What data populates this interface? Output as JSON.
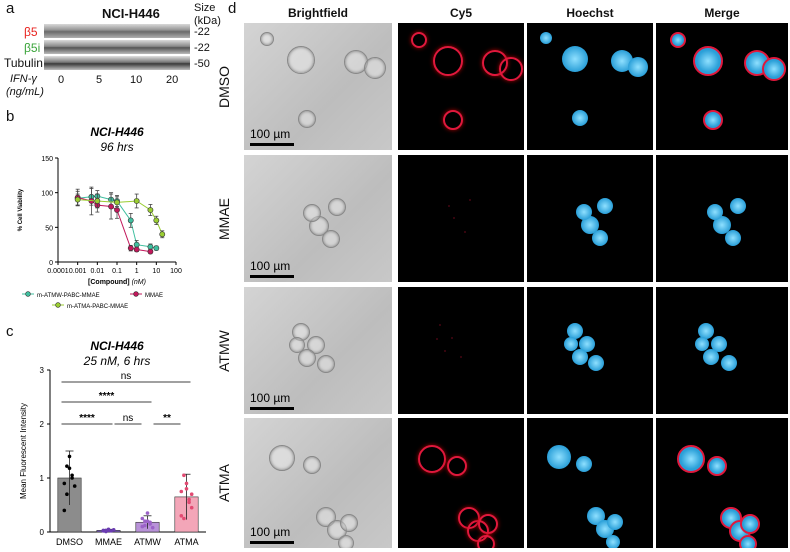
{
  "panels": {
    "a": {
      "label": "a",
      "title": "NCI-H446",
      "size_header": "Size",
      "size_unit": "(kDa)",
      "rows": [
        {
          "name": "β5",
          "color": "#e8231f",
          "size": "-22"
        },
        {
          "name": "β5i",
          "color": "#3aa43a",
          "size": "-22"
        },
        {
          "name": "Tubulin",
          "color": "#111111",
          "size": "-50"
        }
      ],
      "xaxis_label_line1": "IFN-γ",
      "xaxis_label_line2": "(ng/mL)",
      "doses": [
        "0",
        "5",
        "10",
        "20"
      ]
    },
    "b": {
      "label": "b"
    },
    "c": {
      "label": "c"
    },
    "d": {
      "label": "d",
      "columns": [
        "Brightfield",
        "Cy5",
        "Hoechst",
        "Merge"
      ],
      "rows": [
        "DMSO",
        "MMAE",
        "ATMW",
        "ATMA"
      ],
      "scale_bar": "100 µm"
    }
  },
  "chart_data": [
    {
      "type": "scatter",
      "title": "NCI-H446",
      "subtitle": "96 hrs",
      "xlabel": "[Compound]",
      "xlabel_unit": "(nM)",
      "ylabel": "% Cell Viability",
      "xscale": "log",
      "xlim": [
        0.0001,
        100
      ],
      "ylim": [
        0,
        150
      ],
      "xticks": [
        "0.0001",
        "0.001",
        "0.01",
        "0.1",
        "1",
        "10",
        "100"
      ],
      "yticks": [
        "0",
        "50",
        "100",
        "150"
      ],
      "legend": [
        {
          "name": "m-ATMW-PABC-MMAE",
          "color": "#3fbf9f"
        },
        {
          "name": "MMAE",
          "color": "#c2185b"
        },
        {
          "name": "m-ATMA-PABC-MMAE",
          "color": "#9acd32"
        }
      ],
      "series": [
        {
          "name": "m-ATMW-PABC-MMAE",
          "color": "#3fbf9f",
          "x": [
            0.001,
            0.005,
            0.01,
            0.05,
            0.1,
            0.5,
            1,
            5,
            10
          ],
          "y": [
            92,
            94,
            95,
            90,
            88,
            60,
            25,
            22,
            20
          ],
          "err": [
            10,
            12,
            8,
            10,
            8,
            10,
            6,
            4,
            3
          ]
        },
        {
          "name": "MMAE",
          "color": "#c2185b",
          "x": [
            0.001,
            0.005,
            0.01,
            0.05,
            0.1,
            0.5,
            1,
            5
          ],
          "y": [
            93,
            88,
            82,
            80,
            75,
            20,
            18,
            15
          ],
          "err": [
            12,
            20,
            10,
            18,
            12,
            4,
            3,
            3
          ]
        },
        {
          "name": "m-ATMA-PABC-MMAE",
          "color": "#9acd32",
          "x": [
            0.001,
            0.01,
            0.1,
            1,
            5,
            10,
            20
          ],
          "y": [
            90,
            88,
            86,
            88,
            75,
            60,
            40
          ],
          "err": [
            8,
            10,
            8,
            10,
            8,
            6,
            5
          ]
        }
      ]
    },
    {
      "type": "bar",
      "title": "NCI-H446",
      "subtitle": "25 nM, 6 hrs",
      "ylabel": "Mean Fluorescent Intensity",
      "ylim": [
        0,
        3
      ],
      "yticks": [
        "0",
        "1",
        "2",
        "3"
      ],
      "categories": [
        "DMSO",
        "MMAE",
        "ATMW",
        "ATMA"
      ],
      "values": [
        1.0,
        0.03,
        0.18,
        0.65
      ],
      "sd": [
        0.5,
        0.02,
        0.12,
        0.42
      ],
      "colors": [
        "#8c8c8c",
        "#7b5cc4",
        "#b892d8",
        "#f3a6b8"
      ],
      "dot_colors": [
        "#000000",
        "#6a3cb0",
        "#9b62c8",
        "#e24a72"
      ],
      "points": [
        [
          0.9,
          1.22,
          1.18,
          1.05,
          0.85,
          0.4,
          0.7,
          1.4,
          1.0
        ],
        [
          0.02,
          0.03,
          0.05,
          0.02,
          0.04,
          0.03,
          0.01,
          0.03
        ],
        [
          0.1,
          0.2,
          0.35,
          0.15,
          0.08,
          0.25,
          0.12,
          0.2,
          0.18
        ],
        [
          0.3,
          1.05,
          0.9,
          0.6,
          0.45,
          0.75,
          0.25,
          0.8,
          0.55,
          0.7
        ]
      ],
      "significance": [
        {
          "from": 0,
          "to": 3,
          "label": "ns"
        },
        {
          "from": 0,
          "to": 2,
          "label": "****"
        },
        {
          "from": 0,
          "to": 1,
          "label": "****"
        },
        {
          "from": 1,
          "to": 2,
          "label": "ns"
        },
        {
          "from": 2,
          "to": 3,
          "label": "**"
        }
      ]
    }
  ]
}
